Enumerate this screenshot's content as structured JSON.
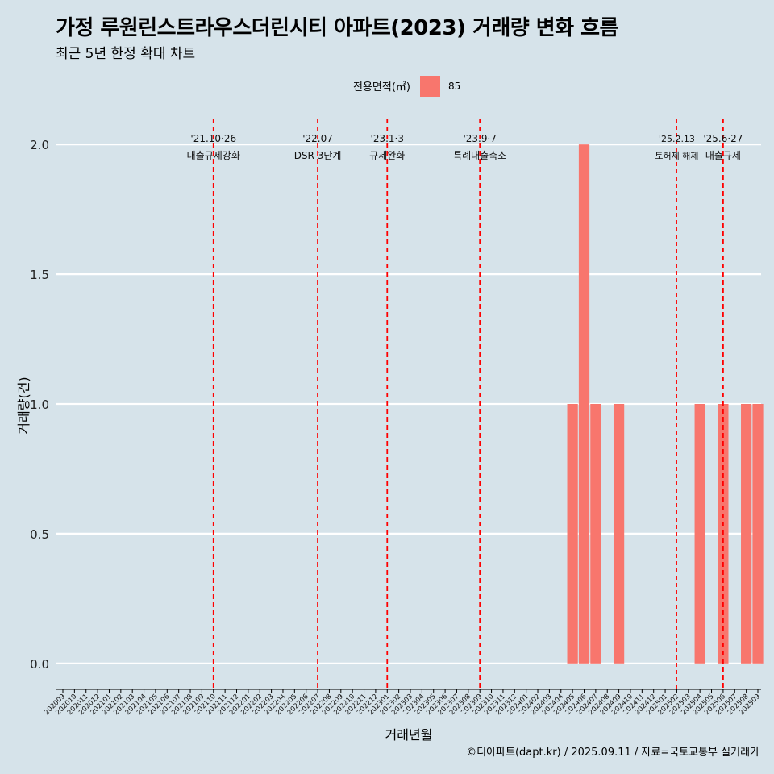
{
  "header": {
    "title": "가정 루원린스트라우스더린시티 아파트(2023) 거래량 변화 흐름",
    "subtitle": "최근 5년 한정 확대 차트"
  },
  "legend": {
    "title": "전용면적(㎡)",
    "items": [
      {
        "label": "85",
        "color": "#f8766d"
      }
    ]
  },
  "caption": "©디아파트(dapt.kr) / 2025.09.11 / 자료=국토교통부 실거래가",
  "colors": {
    "background": "#d6e3ea",
    "bar": "#f8766d",
    "event_line": "#ff0000",
    "grid": "#ffffff"
  },
  "chart_data": {
    "type": "bar",
    "title": "가정 루원린스트라우스더린시티 아파트(2023) 거래량 변화 흐름",
    "xlabel": "거래년월",
    "ylabel": "거래량(건)",
    "ylim": [
      -0.1,
      2.1
    ],
    "yticks": [
      0.0,
      0.5,
      1.0,
      1.5,
      2.0
    ],
    "ytick_labels": [
      "0.0",
      "0.5",
      "1.0",
      "1.5",
      "2.0"
    ],
    "categories": [
      "202009",
      "202010",
      "202011",
      "202012",
      "202101",
      "202102",
      "202103",
      "202104",
      "202105",
      "202106",
      "202107",
      "202108",
      "202109",
      "202110",
      "202111",
      "202112",
      "202201",
      "202202",
      "202203",
      "202204",
      "202205",
      "202206",
      "202207",
      "202208",
      "202209",
      "202210",
      "202211",
      "202212",
      "202301",
      "202302",
      "202303",
      "202304",
      "202305",
      "202306",
      "202307",
      "202308",
      "202309",
      "202310",
      "202311",
      "202312",
      "202401",
      "202402",
      "202403",
      "202404",
      "202405",
      "202406",
      "202407",
      "202408",
      "202409",
      "202410",
      "202411",
      "202412",
      "202501",
      "202502",
      "202503",
      "202504",
      "202505",
      "202506",
      "202507",
      "202508",
      "202509"
    ],
    "series": [
      {
        "name": "85",
        "color": "#f8766d",
        "values": [
          0,
          0,
          0,
          0,
          0,
          0,
          0,
          0,
          0,
          0,
          0,
          0,
          0,
          0,
          0,
          0,
          0,
          0,
          0,
          0,
          0,
          0,
          0,
          0,
          0,
          0,
          0,
          0,
          0,
          0,
          0,
          0,
          0,
          0,
          0,
          0,
          0,
          0,
          0,
          0,
          0,
          0,
          0,
          0,
          1,
          2,
          1,
          0,
          1,
          0,
          0,
          0,
          0,
          0,
          0,
          1,
          0,
          1,
          0,
          1,
          1
        ]
      }
    ],
    "events": [
      {
        "x": "202110",
        "date": "'21.10·26",
        "label": "대출규제강화",
        "style": "thick"
      },
      {
        "x": "202207",
        "date": "'22.07",
        "label": "DSR 3단계",
        "style": "thick"
      },
      {
        "x": "202301",
        "date": "'23.1·3",
        "label": "규제완화",
        "style": "thick"
      },
      {
        "x": "202309",
        "date": "'23.9·7",
        "label": "특례대출축소",
        "style": "thick"
      },
      {
        "x": "202502",
        "date": "'25.2.13",
        "label": "토허제 해제",
        "style": "thin"
      },
      {
        "x": "202506",
        "date": "'25.6·27",
        "label": "대출규제",
        "style": "thick"
      }
    ]
  }
}
